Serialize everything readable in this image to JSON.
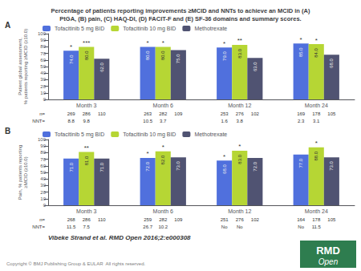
{
  "chart_data": [
    {
      "type": "bar",
      "title": "Percentage of patients reporting improvements ≥MCID and NNTs to achieve an MCID in (A)\nPtGA, (B) pain, (C) HAQ-DI, (D) FACIT-F and (E) SF-36 domains and summary scores.",
      "label": "A",
      "ylabel": "Patient global assessment,\n% patients reporting ≥MCID (≥10.0)",
      "categories": [
        "Month 3",
        "Month 6",
        "Month 12",
        "Month 24"
      ],
      "series": [
        {
          "name": "Tofacitinib 5 mg BID",
          "values": [
            74.0,
            80.0,
            79.0,
            85.0
          ],
          "value_labels": [
            "74.0",
            "80.0",
            "79.0",
            "85.0"
          ],
          "significance": [
            "*",
            "*",
            "*",
            "*"
          ],
          "n": [
            269,
            263,
            253,
            169
          ],
          "nnt": [
            8.8,
            10.5,
            1.6,
            2.3
          ]
        },
        {
          "name": "Tofacitinib 10 mg BID",
          "values": [
            80.0,
            80.0,
            83.0,
            84.0
          ],
          "value_labels": [
            "80.0",
            "80.0",
            "83.0",
            "84.0"
          ],
          "significance": [
            "***",
            "*",
            "**",
            "*"
          ],
          "n": [
            286,
            282,
            276,
            178
          ],
          "nnt": [
            9.8,
            3.7,
            3.8,
            3.1
          ]
        },
        {
          "name": "Methotrexate",
          "values": [
            62.0,
            75.0,
            63.0,
            68.0
          ],
          "value_labels": [
            "62.0",
            "75.0",
            "63.0",
            "68.0"
          ],
          "n": [
            110,
            109,
            102,
            105
          ]
        }
      ],
      "n_label": "n=",
      "nnt_label": "NNT=",
      "ylim": [
        0,
        100
      ],
      "yticks": [
        0,
        10,
        20,
        30,
        40,
        50,
        60,
        70,
        80,
        90,
        100
      ],
      "grid": false,
      "legend": "upper left",
      "data_labels": true,
      "citation": "Vibeke Strand et al. RMD Open 2016;2:e000308",
      "copyright": "Copyright © BMJ Publishing Group & EULAR  All rights reserved.",
      "badge": {
        "texts": [
          "RMD",
          "Open"
        ],
        "color": "#2e7d4f"
      }
    },
    {
      "type": "bar",
      "label": "B",
      "ylabel": "Pain, % patients reporting\n≥MCID (≥10.0)",
      "categories": [
        "Month 3",
        "Month 6",
        "Month 12",
        "Month 24"
      ],
      "series": [
        {
          "name": "Tofacitinib 5 mg BID",
          "values": [
            71.0,
            72.0,
            68.0,
            77.0
          ],
          "value_labels": [
            "71.0",
            "72.0",
            "68.0",
            "77.0"
          ],
          "significance": [
            null,
            "*",
            "*",
            null
          ],
          "n": [
            268,
            259,
            251,
            164
          ],
          "nnt": [
            11.5,
            26.7,
            "No",
            "No"
          ]
        },
        {
          "name": "Tofacitinib 10 mg BID",
          "values": [
            81.0,
            82.0,
            83.0,
            88.0
          ],
          "value_labels": [
            "81.0",
            "82.0",
            "83.0",
            "88.0"
          ],
          "significance": [
            "**",
            "*",
            "*",
            "*"
          ],
          "n": [
            286,
            282,
            276,
            178
          ],
          "nnt": [
            7.5,
            10.2,
            "No",
            11.5
          ]
        },
        {
          "name": "Methotrexate",
          "values": [
            71.0,
            73.0,
            72.0,
            73.0
          ],
          "value_labels": [
            "71.0",
            "73.0",
            "72.0",
            "73.0"
          ],
          "n": [
            110,
            109,
            102,
            105
          ]
        }
      ],
      "n_label": "n=",
      "nnt_label": "NNT=",
      "ylim": [
        0,
        100
      ],
      "yticks": [
        0,
        10,
        20,
        30,
        40,
        50,
        60,
        70,
        80,
        90,
        100
      ],
      "grid": false,
      "legend": "upper left",
      "data_labels": true
    }
  ]
}
